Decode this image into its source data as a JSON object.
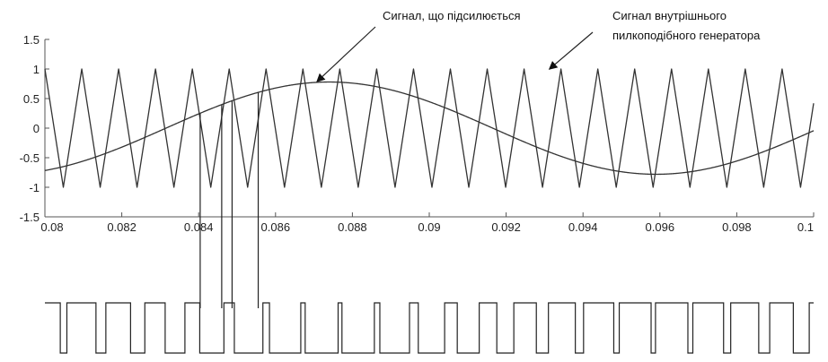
{
  "chart_data": {
    "type": "line",
    "title": "",
    "xlabel": "",
    "ylabel": "",
    "xlim": [
      0.08,
      0.1
    ],
    "ylim": [
      -1.5,
      1.5
    ],
    "x_ticks": [
      0.08,
      0.082,
      0.084,
      0.086,
      0.088,
      0.09,
      0.092,
      0.094,
      0.096,
      0.098,
      0.1
    ],
    "x_tick_labels": [
      "0.08",
      "0.082",
      "0.084",
      "0.086",
      "0.088",
      "0.09",
      "0.092",
      "0.094",
      "0.096",
      "0.098",
      "0.1"
    ],
    "y_ticks": [
      1.5,
      1,
      0.5,
      0,
      -0.5,
      -1,
      -1.5
    ],
    "y_tick_labels": [
      "1.5",
      "1",
      "0.5",
      "0",
      "-0.5",
      "-1",
      "-1.5"
    ],
    "grid": false,
    "series": [
      {
        "kind": "sine",
        "amplitude": 0.78,
        "period": 0.017,
        "peak_at": 0.0874
      },
      {
        "kind": "triangle",
        "amplitude": 1,
        "period": 0.000959,
        "first_peak_at": 0.08
      }
    ],
    "pwm_output": {
      "kind": "pulse-train",
      "description_levels": [
        "high",
        "low"
      ],
      "derived_from": "comparison of series"
    },
    "marked_crossings_x": [
      0.08404,
      0.0846,
      0.08487,
      0.08555
    ],
    "annotations": [
      {
        "text": "Сигнал, що підсилюється",
        "points_to": {
          "x": 0.0871,
          "y": 0.77
        }
      },
      {
        "text_lines": [
          "Сигнал внутрішнього",
          "пилкоподібного генератора"
        ],
        "points_to": {
          "x": 0.0931,
          "y": 0.98
        }
      }
    ]
  }
}
